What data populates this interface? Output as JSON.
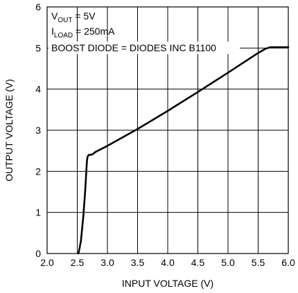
{
  "chart_data": {
    "type": "line",
    "xlabel": "INPUT VOLTAGE (V)",
    "ylabel": "OUTPUT VOLTAGE (V)",
    "xlim": [
      2.0,
      6.0
    ],
    "ylim": [
      0,
      6
    ],
    "xticks": [
      "2.0",
      "2.5",
      "3.0",
      "3.5",
      "4.0",
      "4.5",
      "5.0",
      "5.5",
      "6.0"
    ],
    "yticks": [
      "0",
      "1",
      "2",
      "3",
      "4",
      "5",
      "6"
    ],
    "grid": true,
    "annotations": {
      "vout_main": "V",
      "vout_sub": "OUT",
      "vout_rest": " = 5V",
      "iload_main": "I",
      "iload_sub": "LOAD",
      "iload_rest": " = 250mA",
      "diode": "BOOST DIODE = DIODES INC B1100"
    },
    "series": [
      {
        "color": "#000000",
        "x": [
          2.52,
          2.56,
          2.6,
          2.63,
          2.65,
          2.66,
          2.67,
          2.69,
          2.72,
          2.76,
          2.8,
          3.0,
          3.5,
          4.0,
          4.5,
          5.0,
          5.5,
          5.62,
          5.66,
          5.7,
          6.0
        ],
        "y": [
          0.0,
          0.3,
          0.9,
          1.5,
          2.0,
          2.25,
          2.35,
          2.4,
          2.4,
          2.42,
          2.47,
          2.62,
          3.03,
          3.47,
          3.93,
          4.4,
          4.88,
          4.98,
          5.0,
          5.02,
          5.02
        ]
      }
    ]
  }
}
